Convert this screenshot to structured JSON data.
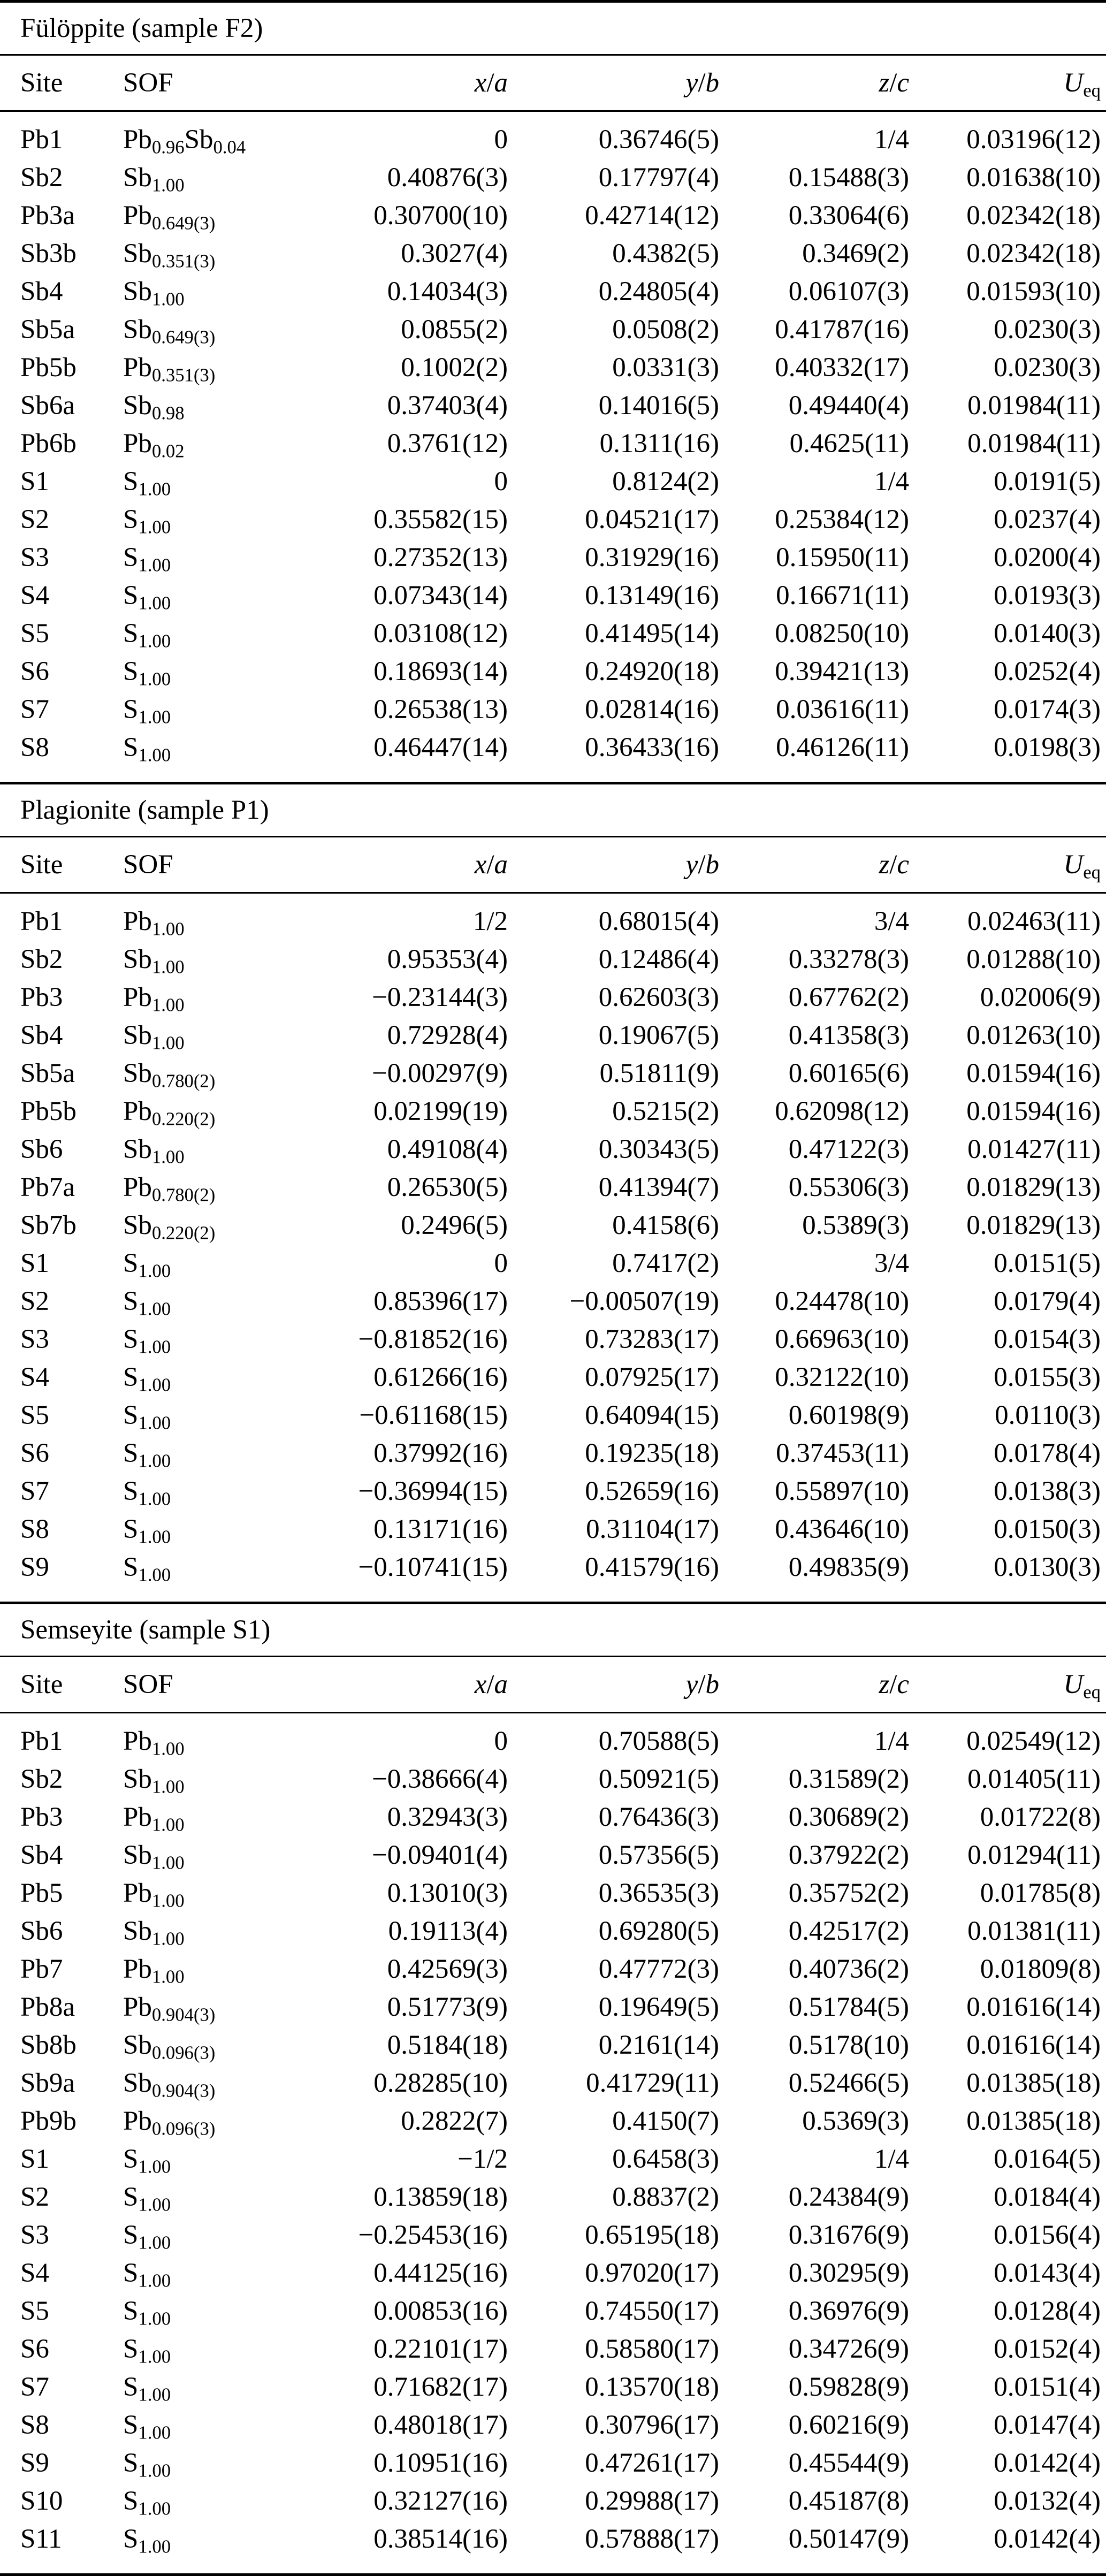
{
  "table": {
    "headers": [
      {
        "text": "Site",
        "italic": false
      },
      {
        "text": "SOF",
        "italic": false
      },
      {
        "text": "x/a",
        "italic": true
      },
      {
        "text": "y/b",
        "italic": true
      },
      {
        "text": "z/c",
        "italic": true
      },
      {
        "text": "U_{eq}",
        "italic": true
      }
    ],
    "sections": [
      {
        "title": "Fülöppite (sample F2)",
        "rows": [
          [
            "Pb1",
            "Pb_{0.96}Sb_{0.04}",
            "0",
            "0.36746(5)",
            "1/4",
            "0.03196(12)"
          ],
          [
            "Sb2",
            "Sb_{1.00}",
            "0.40876(3)",
            "0.17797(4)",
            "0.15488(3)",
            "0.01638(10)"
          ],
          [
            "Pb3a",
            "Pb_{0.649(3)}",
            "0.30700(10)",
            "0.42714(12)",
            "0.33064(6)",
            "0.02342(18)"
          ],
          [
            "Sb3b",
            "Sb_{0.351(3)}",
            "0.3027(4)",
            "0.4382(5)",
            "0.3469(2)",
            "0.02342(18)"
          ],
          [
            "Sb4",
            "Sb_{1.00}",
            "0.14034(3)",
            "0.24805(4)",
            "0.06107(3)",
            "0.01593(10)"
          ],
          [
            "Sb5a",
            "Sb_{0.649(3)}",
            "0.0855(2)",
            "0.0508(2)",
            "0.41787(16)",
            "0.0230(3)"
          ],
          [
            "Pb5b",
            "Pb_{0.351(3)}",
            "0.1002(2)",
            "0.0331(3)",
            "0.40332(17)",
            "0.0230(3)"
          ],
          [
            "Sb6a",
            "Sb_{0.98}",
            "0.37403(4)",
            "0.14016(5)",
            "0.49440(4)",
            "0.01984(11)"
          ],
          [
            "Pb6b",
            "Pb_{0.02}",
            "0.3761(12)",
            "0.1311(16)",
            "0.4625(11)",
            "0.01984(11)"
          ],
          [
            "S1",
            "S_{1.00}",
            "0",
            "0.8124(2)",
            "1/4",
            "0.0191(5)"
          ],
          [
            "S2",
            "S_{1.00}",
            "0.35582(15)",
            "0.04521(17)",
            "0.25384(12)",
            "0.0237(4)"
          ],
          [
            "S3",
            "S_{1.00}",
            "0.27352(13)",
            "0.31929(16)",
            "0.15950(11)",
            "0.0200(4)"
          ],
          [
            "S4",
            "S_{1.00}",
            "0.07343(14)",
            "0.13149(16)",
            "0.16671(11)",
            "0.0193(3)"
          ],
          [
            "S5",
            "S_{1.00}",
            "0.03108(12)",
            "0.41495(14)",
            "0.08250(10)",
            "0.0140(3)"
          ],
          [
            "S6",
            "S_{1.00}",
            "0.18693(14)",
            "0.24920(18)",
            "0.39421(13)",
            "0.0252(4)"
          ],
          [
            "S7",
            "S_{1.00}",
            "0.26538(13)",
            "0.02814(16)",
            "0.03616(11)",
            "0.0174(3)"
          ],
          [
            "S8",
            "S_{1.00}",
            "0.46447(14)",
            "0.36433(16)",
            "0.46126(11)",
            "0.0198(3)"
          ]
        ]
      },
      {
        "title": "Plagionite (sample P1)",
        "rows": [
          [
            "Pb1",
            "Pb_{1.00}",
            "1/2",
            "0.68015(4)",
            "3/4",
            "0.02463(11)"
          ],
          [
            "Sb2",
            "Sb_{1.00}",
            "0.95353(4)",
            "0.12486(4)",
            "0.33278(3)",
            "0.01288(10)"
          ],
          [
            "Pb3",
            "Pb_{1.00}",
            "−0.23144(3)",
            "0.62603(3)",
            "0.67762(2)",
            "0.02006(9)"
          ],
          [
            "Sb4",
            "Sb_{1.00}",
            "0.72928(4)",
            "0.19067(5)",
            "0.41358(3)",
            "0.01263(10)"
          ],
          [
            "Sb5a",
            "Sb_{0.780(2)}",
            "−0.00297(9)",
            "0.51811(9)",
            "0.60165(6)",
            "0.01594(16)"
          ],
          [
            "Pb5b",
            "Pb_{0.220(2)}",
            "0.02199(19)",
            "0.5215(2)",
            "0.62098(12)",
            "0.01594(16)"
          ],
          [
            "Sb6",
            "Sb_{1.00}",
            "0.49108(4)",
            "0.30343(5)",
            "0.47122(3)",
            "0.01427(11)"
          ],
          [
            "Pb7a",
            "Pb_{0.780(2)}",
            "0.26530(5)",
            "0.41394(7)",
            "0.55306(3)",
            "0.01829(13)"
          ],
          [
            "Sb7b",
            "Sb_{0.220(2)}",
            "0.2496(5)",
            "0.4158(6)",
            "0.5389(3)",
            "0.01829(13)"
          ],
          [
            "S1",
            "S_{1.00}",
            "0",
            "0.7417(2)",
            "3/4",
            "0.0151(5)"
          ],
          [
            "S2",
            "S_{1.00}",
            "0.85396(17)",
            "−0.00507(19)",
            "0.24478(10)",
            "0.0179(4)"
          ],
          [
            "S3",
            "S_{1.00}",
            "−0.81852(16)",
            "0.73283(17)",
            "0.66963(10)",
            "0.0154(3)"
          ],
          [
            "S4",
            "S_{1.00}",
            "0.61266(16)",
            "0.07925(17)",
            "0.32122(10)",
            "0.0155(3)"
          ],
          [
            "S5",
            "S_{1.00}",
            "−0.61168(15)",
            "0.64094(15)",
            "0.60198(9)",
            "0.0110(3)"
          ],
          [
            "S6",
            "S_{1.00}",
            "0.37992(16)",
            "0.19235(18)",
            "0.37453(11)",
            "0.0178(4)"
          ],
          [
            "S7",
            "S_{1.00}",
            "−0.36994(15)",
            "0.52659(16)",
            "0.55897(10)",
            "0.0138(3)"
          ],
          [
            "S8",
            "S_{1.00}",
            "0.13171(16)",
            "0.31104(17)",
            "0.43646(10)",
            "0.0150(3)"
          ],
          [
            "S9",
            "S_{1.00}",
            "−0.10741(15)",
            "0.41579(16)",
            "0.49835(9)",
            "0.0130(3)"
          ]
        ]
      },
      {
        "title": "Semseyite (sample S1)",
        "rows": [
          [
            "Pb1",
            "Pb_{1.00}",
            "0",
            "0.70588(5)",
            "1/4",
            "0.02549(12)"
          ],
          [
            "Sb2",
            "Sb_{1.00}",
            "−0.38666(4)",
            "0.50921(5)",
            "0.31589(2)",
            "0.01405(11)"
          ],
          [
            "Pb3",
            "Pb_{1.00}",
            "0.32943(3)",
            "0.76436(3)",
            "0.30689(2)",
            "0.01722(8)"
          ],
          [
            "Sb4",
            "Sb_{1.00}",
            "−0.09401(4)",
            "0.57356(5)",
            "0.37922(2)",
            "0.01294(11)"
          ],
          [
            "Pb5",
            "Pb_{1.00}",
            "0.13010(3)",
            "0.36535(3)",
            "0.35752(2)",
            "0.01785(8)"
          ],
          [
            "Sb6",
            "Sb_{1.00}",
            "0.19113(4)",
            "0.69280(5)",
            "0.42517(2)",
            "0.01381(11)"
          ],
          [
            "Pb7",
            "Pb_{1.00}",
            "0.42569(3)",
            "0.47772(3)",
            "0.40736(2)",
            "0.01809(8)"
          ],
          [
            "Pb8a",
            "Pb_{0.904(3)}",
            "0.51773(9)",
            "0.19649(5)",
            "0.51784(5)",
            "0.01616(14)"
          ],
          [
            "Sb8b",
            "Sb_{0.096(3)}",
            "0.5184(18)",
            "0.2161(14)",
            "0.5178(10)",
            "0.01616(14)"
          ],
          [
            "Sb9a",
            "Sb_{0.904(3)}",
            "0.28285(10)",
            "0.41729(11)",
            "0.52466(5)",
            "0.01385(18)"
          ],
          [
            "Pb9b",
            "Pb_{0.096(3)}",
            "0.2822(7)",
            "0.4150(7)",
            "0.5369(3)",
            "0.01385(18)"
          ],
          [
            "S1",
            "S_{1.00}",
            "−1/2",
            "0.6458(3)",
            "1/4",
            "0.0164(5)"
          ],
          [
            "S2",
            "S_{1.00}",
            "0.13859(18)",
            "0.8837(2)",
            "0.24384(9)",
            "0.0184(4)"
          ],
          [
            "S3",
            "S_{1.00}",
            "−0.25453(16)",
            "0.65195(18)",
            "0.31676(9)",
            "0.0156(4)"
          ],
          [
            "S4",
            "S_{1.00}",
            "0.44125(16)",
            "0.97020(17)",
            "0.30295(9)",
            "0.0143(4)"
          ],
          [
            "S5",
            "S_{1.00}",
            "0.00853(16)",
            "0.74550(17)",
            "0.36976(9)",
            "0.0128(4)"
          ],
          [
            "S6",
            "S_{1.00}",
            "0.22101(17)",
            "0.58580(17)",
            "0.34726(9)",
            "0.0152(4)"
          ],
          [
            "S7",
            "S_{1.00}",
            "0.71682(17)",
            "0.13570(18)",
            "0.59828(9)",
            "0.0151(4)"
          ],
          [
            "S8",
            "S_{1.00}",
            "0.48018(17)",
            "0.30796(17)",
            "0.60216(9)",
            "0.0147(4)"
          ],
          [
            "S9",
            "S_{1.00}",
            "0.10951(16)",
            "0.47261(17)",
            "0.45544(9)",
            "0.0142(4)"
          ],
          [
            "S10",
            "S_{1.00}",
            "0.32127(16)",
            "0.29988(17)",
            "0.45187(8)",
            "0.0132(4)"
          ],
          [
            "S11",
            "S_{1.00}",
            "0.38514(16)",
            "0.57888(17)",
            "0.50147(9)",
            "0.0142(4)"
          ]
        ]
      }
    ]
  }
}
